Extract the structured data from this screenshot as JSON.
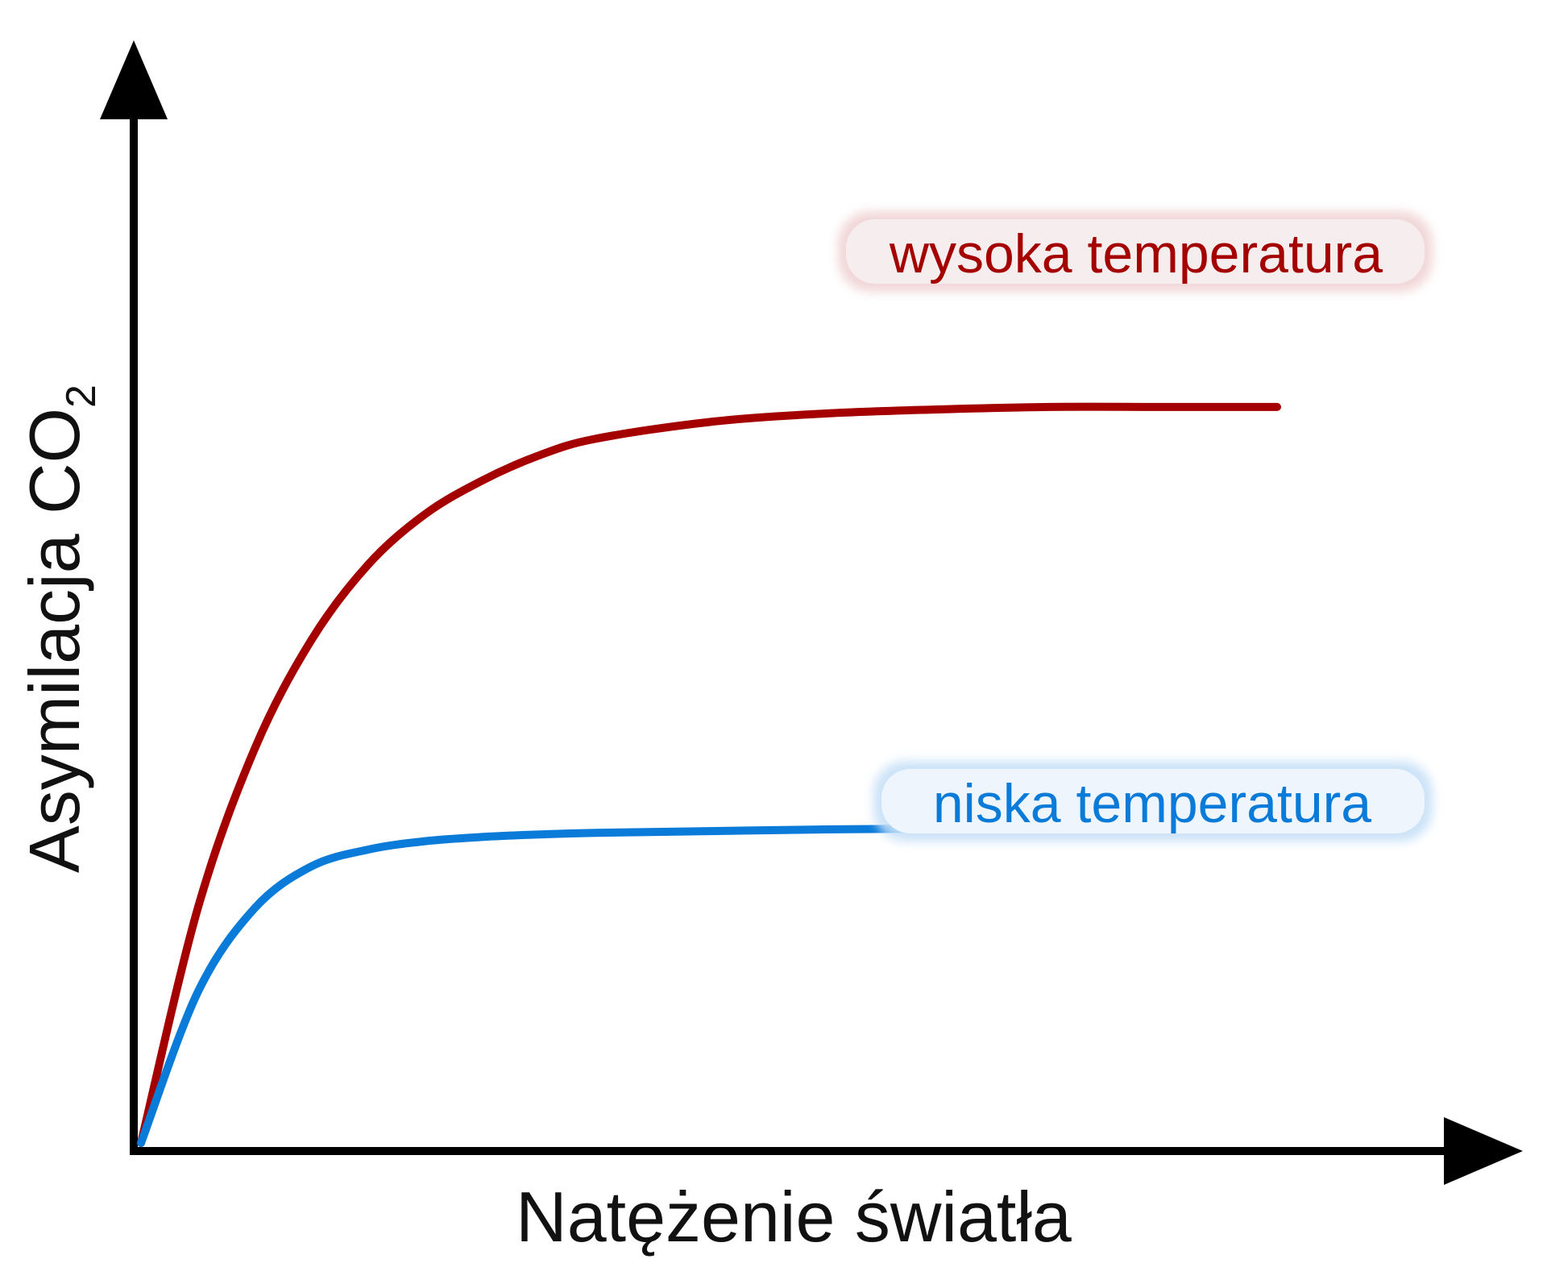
{
  "chart_data": {
    "type": "line",
    "xlabel": "Natężenie światła",
    "ylabel_main": "Asymilacja CO",
    "ylabel_sub": "2",
    "x": [
      0,
      0.05,
      0.1,
      0.15,
      0.2,
      0.25,
      0.3,
      0.35,
      0.4,
      0.5,
      0.6,
      0.7,
      0.8,
      0.9,
      1.0
    ],
    "xlim": [
      0,
      1
    ],
    "ylim": [
      0,
      1
    ],
    "series": [
      {
        "name": "wysoka temperatura",
        "color": "#a50000",
        "values": [
          0,
          0.28,
          0.47,
          0.6,
          0.69,
          0.75,
          0.79,
          0.82,
          0.84,
          0.86,
          0.87,
          0.875,
          0.878,
          0.878,
          0.878
        ]
      },
      {
        "name": "niska temperatura",
        "color": "#0a7bd8",
        "values": [
          0,
          0.18,
          0.28,
          0.33,
          0.35,
          0.36,
          0.365,
          0.368,
          0.37,
          0.372,
          0.374,
          0.375,
          0.376,
          0.376,
          0.376
        ]
      }
    ],
    "grid": false,
    "legend": "labels-near-lines"
  }
}
